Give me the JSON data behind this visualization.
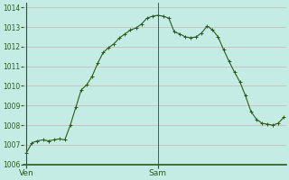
{
  "background_color": "#c5ece4",
  "plot_bg_color": "#c5ece4",
  "line_color": "#2d5a1b",
  "grid_color_h": "#c8b4b4",
  "grid_color_v": "#d4a8a8",
  "x_labels": [
    "Ven",
    "Sam"
  ],
  "ylim": [
    1006,
    1014.25
  ],
  "yticks": [
    1006,
    1007,
    1008,
    1009,
    1010,
    1011,
    1012,
    1013,
    1014
  ],
  "values": [
    1006.6,
    1007.1,
    1007.2,
    1007.25,
    1007.2,
    1007.25,
    1007.3,
    1007.25,
    1008.0,
    1008.9,
    1009.8,
    1010.05,
    1010.5,
    1011.15,
    1011.7,
    1011.95,
    1012.15,
    1012.45,
    1012.65,
    1012.85,
    1012.95,
    1013.15,
    1013.45,
    1013.55,
    1013.6,
    1013.55,
    1013.45,
    1012.75,
    1012.65,
    1012.5,
    1012.45,
    1012.5,
    1012.7,
    1013.05,
    1012.85,
    1012.5,
    1011.85,
    1011.25,
    1010.7,
    1010.2,
    1009.5,
    1008.7,
    1008.3,
    1008.1,
    1008.05,
    1008.0,
    1008.1,
    1008.4
  ],
  "ven_idx": 0,
  "sam_idx": 24,
  "total_points": 48
}
